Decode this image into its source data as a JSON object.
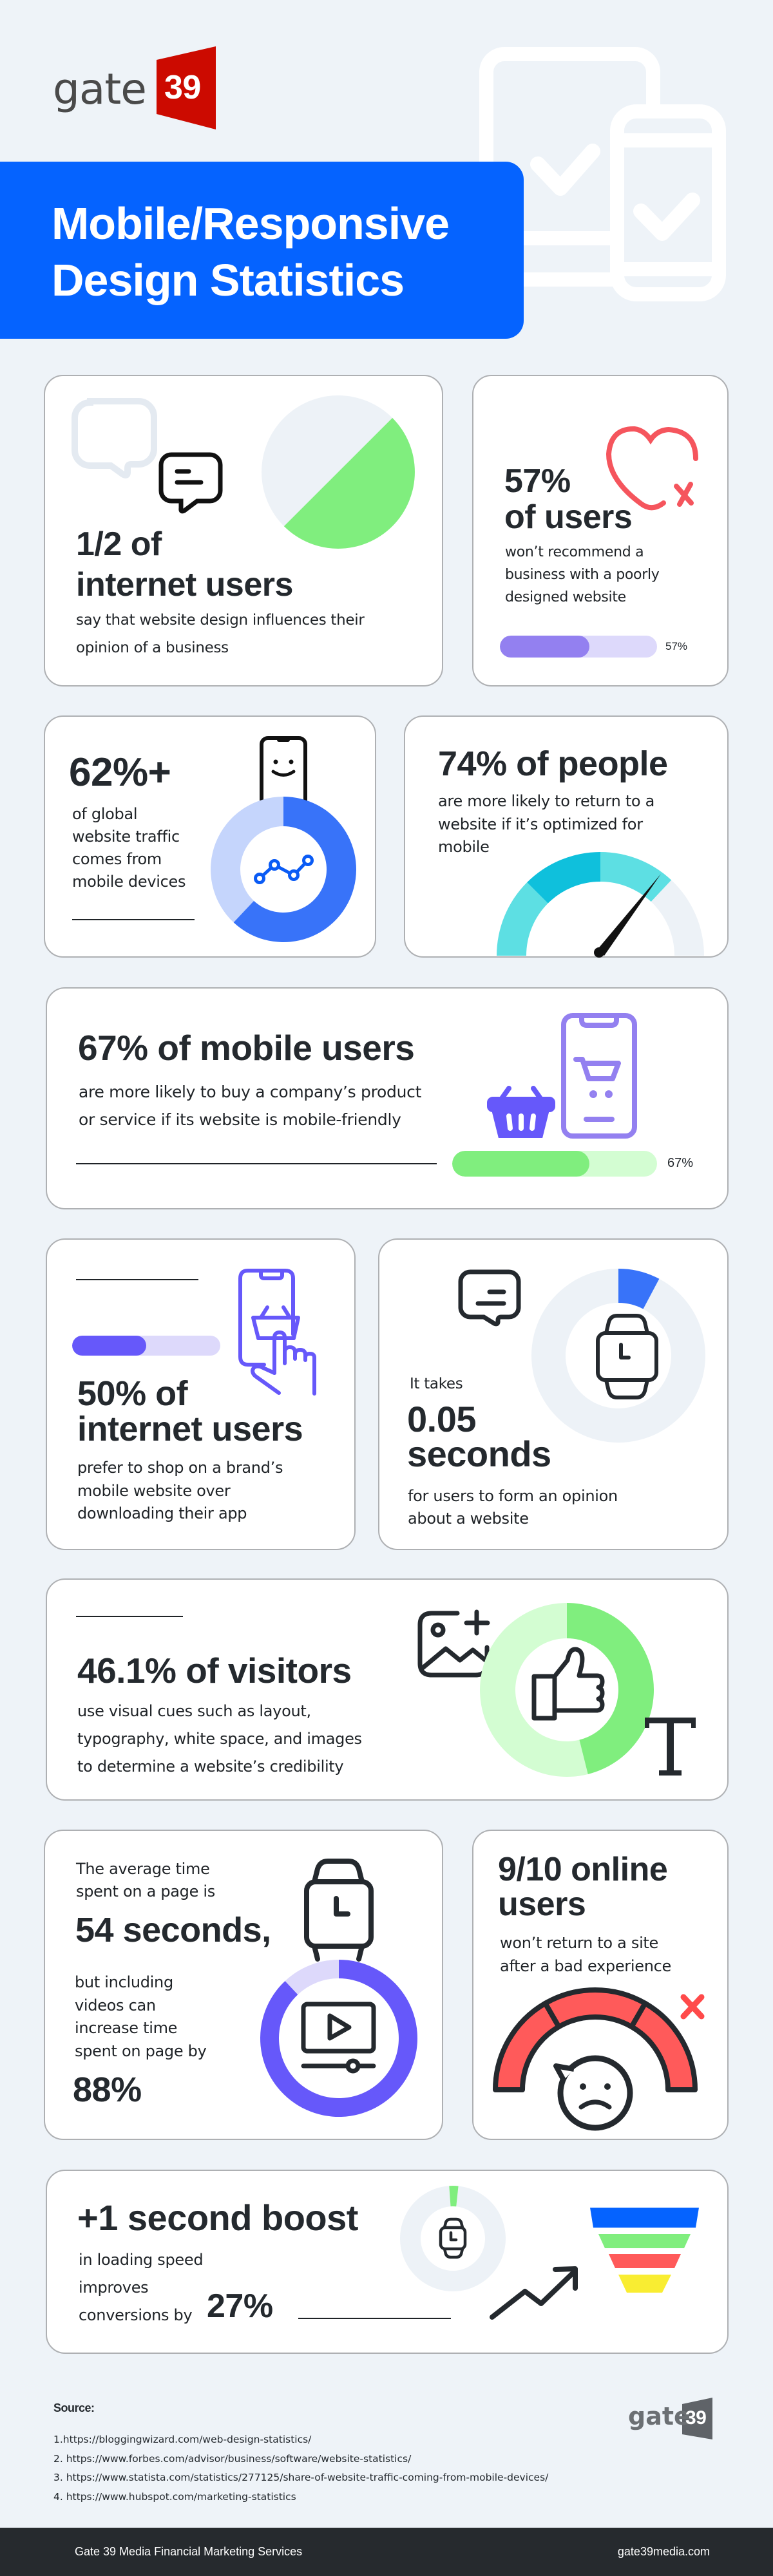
{
  "brand": {
    "logo_word": "gate",
    "logo_number": "39",
    "logo_color": "#cc0a00"
  },
  "header": {
    "title_line1": "Mobile/Responsive",
    "title_line2": "Design Statistics",
    "banner_color": "#0563ff"
  },
  "stats": [
    {
      "headline_1": "1/2 of",
      "headline_2": "internet users",
      "text": "say that website design influences their\nopinion of a business",
      "pie_fraction": 0.5
    },
    {
      "headline_1": "57%",
      "headline_2": "of users",
      "text": "won’t recommend a\nbusiness with a poorly\ndesigned website",
      "bar_percent": 57,
      "bar_label": "57%"
    },
    {
      "headline": "62%+",
      "text": "of global\nwebsite traffic\ncomes from\nmobile devices",
      "donut_percent": 62
    },
    {
      "headline": "74% of people",
      "text": "are more likely to return to a\nwebsite if it’s optimized for\nmobile",
      "gauge_percent": 74
    },
    {
      "headline": "67% of mobile users",
      "text": "are more likely to buy a company’s product\nor service if its website is mobile-friendly",
      "bar_percent": 67,
      "bar_label": "67%"
    },
    {
      "headline_1": "50% of",
      "headline_2": "internet users",
      "text": "prefer to shop on a brand’s\nmobile website over\ndownloading their app",
      "bar_percent": 50
    },
    {
      "lead": "It takes",
      "headline_1": "0.05",
      "headline_2": "seconds",
      "text": "for users to form an opinion\nabout a website"
    },
    {
      "headline": "46.1% of visitors",
      "text": "use visual cues such as layout,\ntypography, white space, and images\nto determine a website’s credibility",
      "donut_percent": 46.1
    },
    {
      "lead": "The average time\nspent on a page is",
      "headline": "54 seconds,",
      "text": "but including\nvideos can\nincrease time\nspent on page by",
      "headline_2": "88%",
      "donut_percent": 88
    },
    {
      "headline": "9/10 online\nusers",
      "text": "won’t return to a site\nafter a bad experience"
    },
    {
      "headline": "+1 second boost",
      "text": "in loading speed\nimproves\nconversions by",
      "highlight": "27%"
    }
  ],
  "sources": {
    "label": "Source:",
    "items": [
      "1.https://bloggingwizard.com/web-design-statistics/",
      "2. https://www.forbes.com/advisor/business/software/website-statistics/",
      "3. https://www.statista.com/statistics/277125/share-of-website-traffic-coming-from-mobile-devices/",
      "4. https://www.hubspot.com/marketing-statistics"
    ]
  },
  "footer": {
    "left": "Gate 39 Media Financial Marketing Services",
    "right": "gate39media.com"
  },
  "colors": {
    "background": "#eef3f8",
    "text": "#24292e",
    "green": "#80ee7e",
    "green_light": "#d3fdd2",
    "purple": "#9380f0",
    "purple_light": "#ddd9fb",
    "indigo": "#6658fa",
    "blue": "#3873f9",
    "blue_light": "#c5d5fc",
    "red": "#ff5a5a",
    "cyan": "#0fc0dc",
    "cyan_light": "#5ddfe3",
    "ring_gray": "#edf2f7"
  }
}
